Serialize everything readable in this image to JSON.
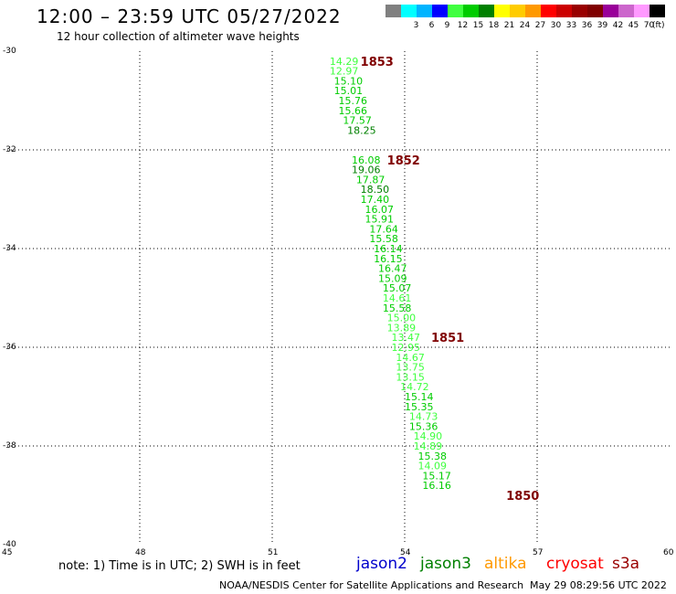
{
  "header": {
    "title": "12:00 – 23:59 UTC 05/27/2022",
    "subtitle": "12 hour collection of altimeter wave heights"
  },
  "color_bar": {
    "swatches": [
      {
        "label": "",
        "color": "#808080"
      },
      {
        "label": "3",
        "color": "#00ffff"
      },
      {
        "label": "6",
        "color": "#00b4ff"
      },
      {
        "label": "9",
        "color": "#0000ff"
      },
      {
        "label": "12",
        "color": "#40ff40"
      },
      {
        "label": "15",
        "color": "#00cc00"
      },
      {
        "label": "18",
        "color": "#008000"
      },
      {
        "label": "21",
        "color": "#ffff00"
      },
      {
        "label": "24",
        "color": "#ffcc00"
      },
      {
        "label": "27",
        "color": "#ff9900"
      },
      {
        "label": "30",
        "color": "#ff0000"
      },
      {
        "label": "33",
        "color": "#cc0000"
      },
      {
        "label": "36",
        "color": "#990000"
      },
      {
        "label": "39",
        "color": "#800000"
      },
      {
        "label": "42",
        "color": "#990099"
      },
      {
        "label": "45",
        "color": "#cc66cc"
      },
      {
        "label": "70",
        "color": "#ff99ff"
      },
      {
        "label": "",
        "color": "#000000"
      }
    ],
    "unit": "(ft)"
  },
  "map": {
    "lat_labels": [
      "-30",
      "-32",
      "-34",
      "-36",
      "-38",
      "-40"
    ],
    "lon_labels": [
      "45",
      "48",
      "51",
      "54",
      "57",
      "60"
    ],
    "lat_range": [
      -40,
      -30
    ],
    "lon_range": [
      45,
      60
    ],
    "pass_color": "#800000",
    "passes": [
      {
        "label": "1853",
        "lat": -30.2,
        "lon": 53.0
      },
      {
        "label": "1852",
        "lat": -32.2,
        "lon": 53.6
      },
      {
        "label": "1851",
        "lat": -35.8,
        "lon": 54.6
      },
      {
        "label": "1850",
        "lat": -39.0,
        "lon": 56.3
      }
    ],
    "observations": [
      {
        "value": "14.29",
        "lat": -30.2,
        "lon": 52.3,
        "color": "#40ff40"
      },
      {
        "value": "12.97",
        "lat": -30.4,
        "lon": 52.3,
        "color": "#40ff40"
      },
      {
        "value": "15.10",
        "lat": -30.6,
        "lon": 52.4,
        "color": "#00cc00"
      },
      {
        "value": "15.01",
        "lat": -30.8,
        "lon": 52.4,
        "color": "#00cc00"
      },
      {
        "value": "15.76",
        "lat": -31.0,
        "lon": 52.5,
        "color": "#00cc00"
      },
      {
        "value": "15.66",
        "lat": -31.2,
        "lon": 52.5,
        "color": "#00cc00"
      },
      {
        "value": "17.57",
        "lat": -31.4,
        "lon": 52.6,
        "color": "#00cc00"
      },
      {
        "value": "18.25",
        "lat": -31.6,
        "lon": 52.7,
        "color": "#008000"
      },
      {
        "value": "16.08",
        "lat": -32.2,
        "lon": 52.8,
        "color": "#00cc00"
      },
      {
        "value": "19.06",
        "lat": -32.4,
        "lon": 52.8,
        "color": "#008000"
      },
      {
        "value": "17.87",
        "lat": -32.6,
        "lon": 52.9,
        "color": "#00cc00"
      },
      {
        "value": "18.50",
        "lat": -32.8,
        "lon": 53.0,
        "color": "#008000"
      },
      {
        "value": "17.40",
        "lat": -33.0,
        "lon": 53.0,
        "color": "#00cc00"
      },
      {
        "value": "16.07",
        "lat": -33.2,
        "lon": 53.1,
        "color": "#00cc00"
      },
      {
        "value": "15.91",
        "lat": -33.4,
        "lon": 53.1,
        "color": "#00cc00"
      },
      {
        "value": "17.64",
        "lat": -33.6,
        "lon": 53.2,
        "color": "#00cc00"
      },
      {
        "value": "15.58",
        "lat": -33.8,
        "lon": 53.2,
        "color": "#00cc00"
      },
      {
        "value": "16.14",
        "lat": -34.0,
        "lon": 53.3,
        "color": "#00cc00"
      },
      {
        "value": "16.15",
        "lat": -34.2,
        "lon": 53.3,
        "color": "#00cc00"
      },
      {
        "value": "16.47",
        "lat": -34.4,
        "lon": 53.4,
        "color": "#00cc00"
      },
      {
        "value": "15.09",
        "lat": -34.6,
        "lon": 53.4,
        "color": "#00cc00"
      },
      {
        "value": "15.07",
        "lat": -34.8,
        "lon": 53.5,
        "color": "#00cc00"
      },
      {
        "value": "14.61",
        "lat": -35.0,
        "lon": 53.5,
        "color": "#40ff40"
      },
      {
        "value": "15.58",
        "lat": -35.2,
        "lon": 53.5,
        "color": "#00cc00"
      },
      {
        "value": "15.00",
        "lat": -35.4,
        "lon": 53.6,
        "color": "#40ff40"
      },
      {
        "value": "13.89",
        "lat": -35.6,
        "lon": 53.6,
        "color": "#40ff40"
      },
      {
        "value": "13.47",
        "lat": -35.8,
        "lon": 53.7,
        "color": "#40ff40"
      },
      {
        "value": "12.95",
        "lat": -36.0,
        "lon": 53.7,
        "color": "#40ff40"
      },
      {
        "value": "14.67",
        "lat": -36.2,
        "lon": 53.8,
        "color": "#40ff40"
      },
      {
        "value": "13.75",
        "lat": -36.4,
        "lon": 53.8,
        "color": "#40ff40"
      },
      {
        "value": "13.15",
        "lat": -36.6,
        "lon": 53.8,
        "color": "#40ff40"
      },
      {
        "value": "14.72",
        "lat": -36.8,
        "lon": 53.9,
        "color": "#40ff40"
      },
      {
        "value": "15.14",
        "lat": -37.0,
        "lon": 54.0,
        "color": "#00cc00"
      },
      {
        "value": "15.35",
        "lat": -37.2,
        "lon": 54.0,
        "color": "#00cc00"
      },
      {
        "value": "14.73",
        "lat": -37.4,
        "lon": 54.1,
        "color": "#40ff40"
      },
      {
        "value": "15.36",
        "lat": -37.6,
        "lon": 54.1,
        "color": "#00cc00"
      },
      {
        "value": "14.90",
        "lat": -37.8,
        "lon": 54.2,
        "color": "#40ff40"
      },
      {
        "value": "14.89",
        "lat": -38.0,
        "lon": 54.2,
        "color": "#40ff40"
      },
      {
        "value": "15.38",
        "lat": -38.2,
        "lon": 54.3,
        "color": "#00cc00"
      },
      {
        "value": "14.09",
        "lat": -38.4,
        "lon": 54.3,
        "color": "#40ff40"
      },
      {
        "value": "15.17",
        "lat": -38.6,
        "lon": 54.4,
        "color": "#00cc00"
      },
      {
        "value": "16.16",
        "lat": -38.8,
        "lon": 54.4,
        "color": "#00cc00"
      }
    ]
  },
  "legend": {
    "note": "note:  1) Time is in UTC;  2) SWH is in feet",
    "satellites": [
      {
        "name": "jason2",
        "color": "#0000cc"
      },
      {
        "name": "jason3",
        "color": "#008000"
      },
      {
        "name": "altika",
        "color": "#ff9900"
      },
      {
        "name": "cryosat",
        "color": "#ff0000"
      },
      {
        "name": "s3a",
        "color": "#990000"
      }
    ]
  },
  "footer": {
    "source": "NOAA/NESDIS Center for Satellite Applications and Research",
    "timestamp": "May 29 08:29:56 UTC 2022"
  }
}
